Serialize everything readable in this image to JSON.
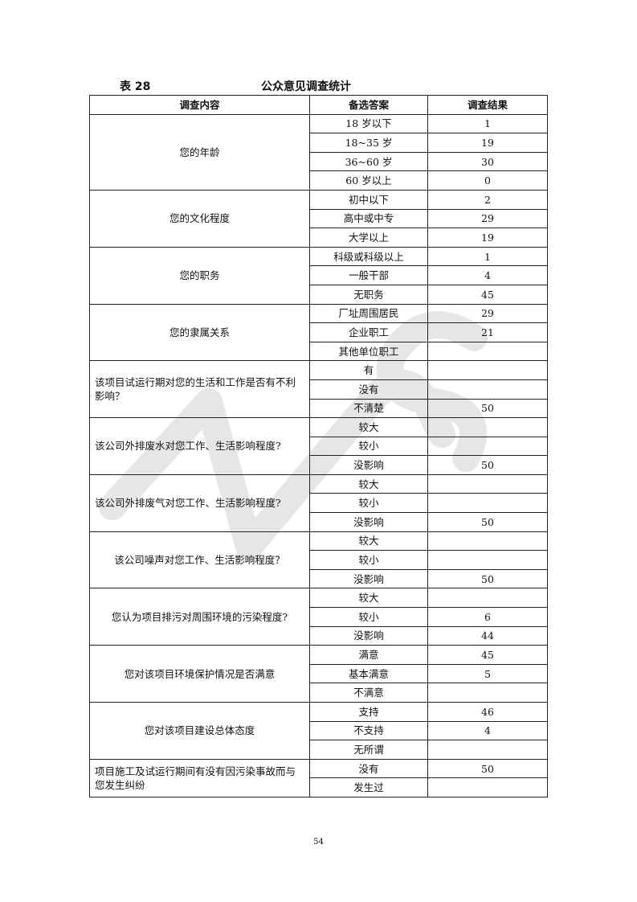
{
  "caption": {
    "table_number": "表 28",
    "title": "公众意见调查统计"
  },
  "headers": [
    "调查内容",
    "备选答案",
    "调查结果"
  ],
  "groups": [
    {
      "question": "您的年龄",
      "align": "center",
      "options": [
        {
          "answer": "18 岁以下",
          "result": "1"
        },
        {
          "answer": "18~35 岁",
          "result": "19"
        },
        {
          "answer": "36~60 岁",
          "result": "30"
        },
        {
          "answer": "60 岁以上",
          "result": "0"
        }
      ]
    },
    {
      "question": "您的文化程度",
      "align": "center",
      "options": [
        {
          "answer": "初中以下",
          "result": "2"
        },
        {
          "answer": "高中或中专",
          "result": "29"
        },
        {
          "answer": "大学以上",
          "result": "19"
        }
      ]
    },
    {
      "question": "您的职务",
      "align": "center",
      "options": [
        {
          "answer": "科级或科级以上",
          "result": "1"
        },
        {
          "answer": "一般干部",
          "result": "4"
        },
        {
          "answer": "无职务",
          "result": "45"
        }
      ]
    },
    {
      "question": "您的隶属关系",
      "align": "center",
      "options": [
        {
          "answer": "厂址周围居民",
          "result": "29"
        },
        {
          "answer": "企业职工",
          "result": "21"
        },
        {
          "answer": "其他单位职工",
          "result": ""
        }
      ]
    },
    {
      "question": "该项目试运行期对您的生活和工作是否有不利影响？",
      "align": "left",
      "options": [
        {
          "answer": "有",
          "result": ""
        },
        {
          "answer": "没有",
          "result": ""
        },
        {
          "answer": "不清楚",
          "result": "50"
        }
      ]
    },
    {
      "question": "该公司外排废水对您工作、生活影响程度?",
      "align": "left",
      "options": [
        {
          "answer": "较大",
          "result": ""
        },
        {
          "answer": "较小",
          "result": ""
        },
        {
          "answer": "没影响",
          "result": "50"
        }
      ]
    },
    {
      "question": "该公司外排废气对您工作、生活影响程度?",
      "align": "left",
      "options": [
        {
          "answer": "较大",
          "result": ""
        },
        {
          "answer": "较小",
          "result": ""
        },
        {
          "answer": "没影响",
          "result": "50"
        }
      ]
    },
    {
      "question": "该公司噪声对您工作、生活影响程度？",
      "align": "center",
      "options": [
        {
          "answer": "较大",
          "result": ""
        },
        {
          "answer": "较小",
          "result": ""
        },
        {
          "answer": "没影响",
          "result": "50"
        }
      ]
    },
    {
      "question": "您认为项目排污对周围环境的污染程度?",
      "align": "center",
      "options": [
        {
          "answer": "较大",
          "result": ""
        },
        {
          "answer": "较小",
          "result": "6"
        },
        {
          "answer": "没影响",
          "result": "44"
        }
      ]
    },
    {
      "question": "您对该项目环境保护情况是否满意",
      "align": "center",
      "options": [
        {
          "answer": "满意",
          "result": "45"
        },
        {
          "answer": "基本满意",
          "result": "5"
        },
        {
          "answer": "不满意",
          "result": ""
        }
      ]
    },
    {
      "question": "您对该项目建设总体态度",
      "align": "center",
      "options": [
        {
          "answer": "支持",
          "result": "46"
        },
        {
          "answer": "不支持",
          "result": "4"
        },
        {
          "answer": "无所谓",
          "result": ""
        }
      ]
    },
    {
      "question": "项目施工及试运行期间有没有因污染事故而与您发生纠纷",
      "align": "left",
      "options": [
        {
          "answer": "没有",
          "result": "50"
        },
        {
          "answer": "发生过",
          "result": ""
        }
      ]
    }
  ],
  "page_number": "54",
  "watermark": {
    "logo": "WPS",
    "color": "#e4e4e4"
  }
}
